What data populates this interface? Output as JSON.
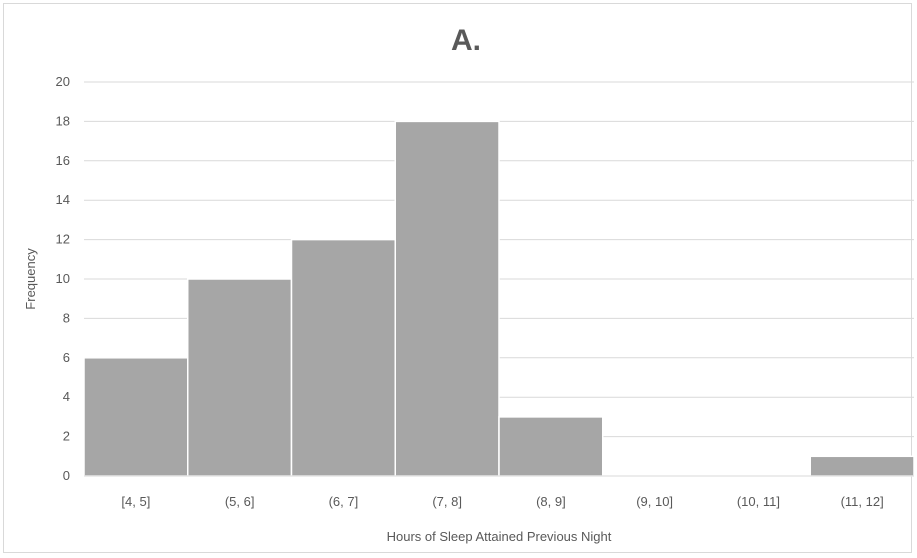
{
  "chart_data": {
    "type": "bar",
    "title": "A.",
    "xlabel": "Hours of Sleep Attained Previous Night",
    "ylabel": "Frequency",
    "categories": [
      "[4, 5]",
      "(5, 6]",
      "(6, 7]",
      "(7, 8]",
      "(8, 9]",
      "(9, 10]",
      "(10, 11]",
      "(11, 12]"
    ],
    "values": [
      6,
      10,
      12,
      18,
      3,
      0,
      0,
      1
    ],
    "ylim": [
      0,
      20
    ],
    "yticks": [
      0,
      2,
      4,
      6,
      8,
      10,
      12,
      14,
      16,
      18,
      20
    ],
    "grid": true,
    "legend": "none",
    "colors": {
      "bar": "#a6a6a6",
      "bar_edge": "#ffffff",
      "grid": "#d9d9d9",
      "text": "#595959"
    }
  }
}
